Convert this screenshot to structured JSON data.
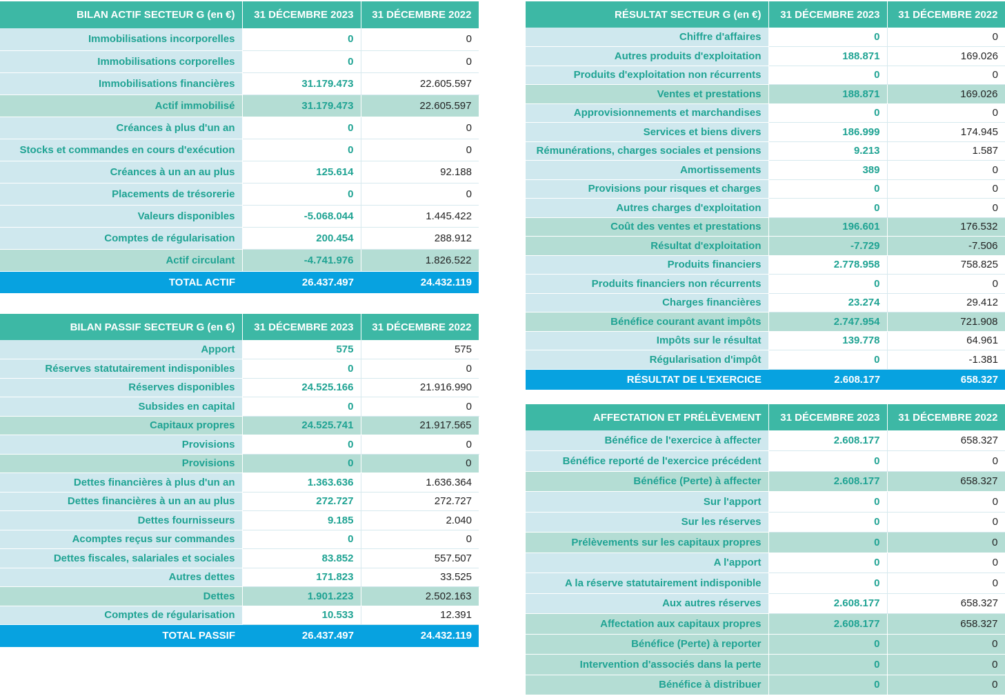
{
  "actif": {
    "header": [
      "BILAN ACTIF  SECTEUR G (en €)",
      "31 DÉCEMBRE 2023",
      "31 DÉCEMBRE 2022"
    ],
    "rows": [
      {
        "label": "Immobilisations incorporelles",
        "v2023": "0",
        "v2022": "0",
        "kind": "normal"
      },
      {
        "label": "Immobilisations corporelles",
        "v2023": "0",
        "v2022": "0",
        "kind": "normal"
      },
      {
        "label": "Immobilisations financières",
        "v2023": "31.179.473",
        "v2022": "22.605.597",
        "kind": "normal"
      },
      {
        "label": "Actif immobilisé",
        "v2023": "31.179.473",
        "v2022": "22.605.597",
        "kind": "sub"
      },
      {
        "label": "Créances à plus d'un an",
        "v2023": "0",
        "v2022": "0",
        "kind": "normal"
      },
      {
        "label": "Stocks et commandes en cours d'exécution",
        "v2023": "0",
        "v2022": "0",
        "kind": "normal"
      },
      {
        "label": "Créances à un an au plus",
        "v2023": "125.614",
        "v2022": "92.188",
        "kind": "normal"
      },
      {
        "label": "Placements de trésorerie",
        "v2023": "0",
        "v2022": "0",
        "kind": "normal"
      },
      {
        "label": "Valeurs disponibles",
        "v2023": "-5.068.044",
        "v2022": "1.445.422",
        "kind": "normal"
      },
      {
        "label": "Comptes de régularisation",
        "v2023": "200.454",
        "v2022": "288.912",
        "kind": "normal"
      },
      {
        "label": "Actif circulant",
        "v2023": "-4.741.976",
        "v2022": "1.826.522",
        "kind": "sub"
      },
      {
        "label": "TOTAL ACTIF",
        "v2023": "26.437.497",
        "v2022": "24.432.119",
        "kind": "total"
      }
    ]
  },
  "passif": {
    "header": [
      "BILAN PASSIF  SECTEUR G (en €)",
      "31 DÉCEMBRE 2023",
      "31 DÉCEMBRE 2022"
    ],
    "rows": [
      {
        "label": "Apport",
        "v2023": "575",
        "v2022": "575",
        "kind": "normal"
      },
      {
        "label": "Réserves statutairement indisponibles",
        "v2023": "0",
        "v2022": "0",
        "kind": "normal"
      },
      {
        "label": "Réserves disponibles",
        "v2023": "24.525.166",
        "v2022": "21.916.990",
        "kind": "normal"
      },
      {
        "label": "Subsides en capital",
        "v2023": "0",
        "v2022": "0",
        "kind": "normal"
      },
      {
        "label": "Capitaux propres",
        "v2023": "24.525.741",
        "v2022": "21.917.565",
        "kind": "sub"
      },
      {
        "label": "Provisions",
        "v2023": "0",
        "v2022": "0",
        "kind": "normal"
      },
      {
        "label": "Provisions",
        "v2023": "0",
        "v2022": "0",
        "kind": "sub"
      },
      {
        "label": "Dettes financières à plus d'un an",
        "v2023": "1.363.636",
        "v2022": "1.636.364",
        "kind": "normal"
      },
      {
        "label": "Dettes financières à un an au plus",
        "v2023": "272.727",
        "v2022": "272.727",
        "kind": "normal"
      },
      {
        "label": "Dettes fournisseurs",
        "v2023": "9.185",
        "v2022": "2.040",
        "kind": "normal"
      },
      {
        "label": "Acomptes reçus sur commandes",
        "v2023": "0",
        "v2022": "0",
        "kind": "normal"
      },
      {
        "label": "Dettes fiscales, salariales et sociales",
        "v2023": "83.852",
        "v2022": "557.507",
        "kind": "normal"
      },
      {
        "label": "Autres dettes",
        "v2023": "171.823",
        "v2022": "33.525",
        "kind": "normal"
      },
      {
        "label": "Dettes",
        "v2023": "1.901.223",
        "v2022": "2.502.163",
        "kind": "sub"
      },
      {
        "label": "Comptes de régularisation",
        "v2023": "10.533",
        "v2022": "12.391",
        "kind": "normal"
      },
      {
        "label": "TOTAL PASSIF",
        "v2023": "26.437.497",
        "v2022": "24.432.119",
        "kind": "total"
      }
    ]
  },
  "resultat": {
    "header": [
      "RÉSULTAT SECTEUR G (en €)",
      "31 DÉCEMBRE 2023",
      "31 DÉCEMBRE 2022"
    ],
    "rows": [
      {
        "label": "Chiffre d'affaires",
        "v2023": "0",
        "v2022": "0",
        "kind": "normal"
      },
      {
        "label": "Autres produits d'exploitation",
        "v2023": "188.871",
        "v2022": "169.026",
        "kind": "normal"
      },
      {
        "label": "Produits d'exploitation non récurrents",
        "v2023": "0",
        "v2022": "0",
        "kind": "normal"
      },
      {
        "label": "Ventes et prestations",
        "v2023": "188.871",
        "v2022": "169.026",
        "kind": "sub"
      },
      {
        "label": "Approvisionnements et marchandises",
        "v2023": "0",
        "v2022": "0",
        "kind": "normal"
      },
      {
        "label": "Services et biens divers",
        "v2023": "186.999",
        "v2022": "174.945",
        "kind": "normal"
      },
      {
        "label": "Rémunérations, charges sociales et pensions",
        "v2023": "9.213",
        "v2022": "1.587",
        "kind": "normal"
      },
      {
        "label": "Amortissements",
        "v2023": "389",
        "v2022": "0",
        "kind": "normal"
      },
      {
        "label": "Provisions pour risques et charges",
        "v2023": "0",
        "v2022": "0",
        "kind": "normal"
      },
      {
        "label": "Autres charges d'exploitation",
        "v2023": "0",
        "v2022": "0",
        "kind": "normal"
      },
      {
        "label": "Coût des ventes et prestations",
        "v2023": "196.601",
        "v2022": "176.532",
        "kind": "sub"
      },
      {
        "label": "Résultat d'exploitation",
        "v2023": "-7.729",
        "v2022": "-7.506",
        "kind": "sub"
      },
      {
        "label": "Produits financiers",
        "v2023": "2.778.958",
        "v2022": "758.825",
        "kind": "normal"
      },
      {
        "label": "Produits financiers non récurrents",
        "v2023": "0",
        "v2022": "0",
        "kind": "normal"
      },
      {
        "label": "Charges financières",
        "v2023": "23.274",
        "v2022": "29.412",
        "kind": "normal"
      },
      {
        "label": "Bénéfice courant avant impôts",
        "v2023": "2.747.954",
        "v2022": "721.908",
        "kind": "sub"
      },
      {
        "label": "Impôts sur le résultat",
        "v2023": "139.778",
        "v2022": "64.961",
        "kind": "normal"
      },
      {
        "label": "Régularisation d'impôt",
        "v2023": "0",
        "v2022": "-1.381",
        "kind": "normal"
      },
      {
        "label": "RÉSULTAT DE L'EXERCICE",
        "v2023": "2.608.177",
        "v2022": "658.327",
        "kind": "total"
      }
    ]
  },
  "affectation": {
    "header": [
      "AFFECTATION ET PRÉLÈVEMENT",
      "31 DÉCEMBRE 2023",
      "31 DÉCEMBRE 2022"
    ],
    "rows": [
      {
        "label": "Bénéfice de l'exercice à affecter",
        "v2023": "2.608.177",
        "v2022": "658.327",
        "kind": "normal"
      },
      {
        "label": "Bénéfice reporté de l'exercice précédent",
        "v2023": "0",
        "v2022": "0",
        "kind": "normal"
      },
      {
        "label": "Bénéfice (Perte) à affecter",
        "v2023": "2.608.177",
        "v2022": "658.327",
        "kind": "sub"
      },
      {
        "label": "Sur l'apport",
        "v2023": "0",
        "v2022": "0",
        "kind": "normal"
      },
      {
        "label": "Sur les réserves",
        "v2023": "0",
        "v2022": "0",
        "kind": "normal"
      },
      {
        "label": "Prélèvements sur les capitaux propres",
        "v2023": "0",
        "v2022": "0",
        "kind": "sub"
      },
      {
        "label": "A l'apport",
        "v2023": "0",
        "v2022": "0",
        "kind": "normal"
      },
      {
        "label": "A la réserve statutairement indisponible",
        "v2023": "0",
        "v2022": "0",
        "kind": "normal"
      },
      {
        "label": "Aux autres réserves",
        "v2023": "2.608.177",
        "v2022": "658.327",
        "kind": "normal"
      },
      {
        "label": "Affectation aux capitaux propres",
        "v2023": "2.608.177",
        "v2022": "658.327",
        "kind": "sub"
      },
      {
        "label": "Bénéfice (Perte) à reporter",
        "v2023": "0",
        "v2022": "0",
        "kind": "sub"
      },
      {
        "label": "Intervention d'associés dans la perte",
        "v2023": "0",
        "v2022": "0",
        "kind": "sub"
      },
      {
        "label": "Bénéfice à distribuer",
        "v2023": "0",
        "v2022": "0",
        "kind": "sub"
      }
    ]
  }
}
